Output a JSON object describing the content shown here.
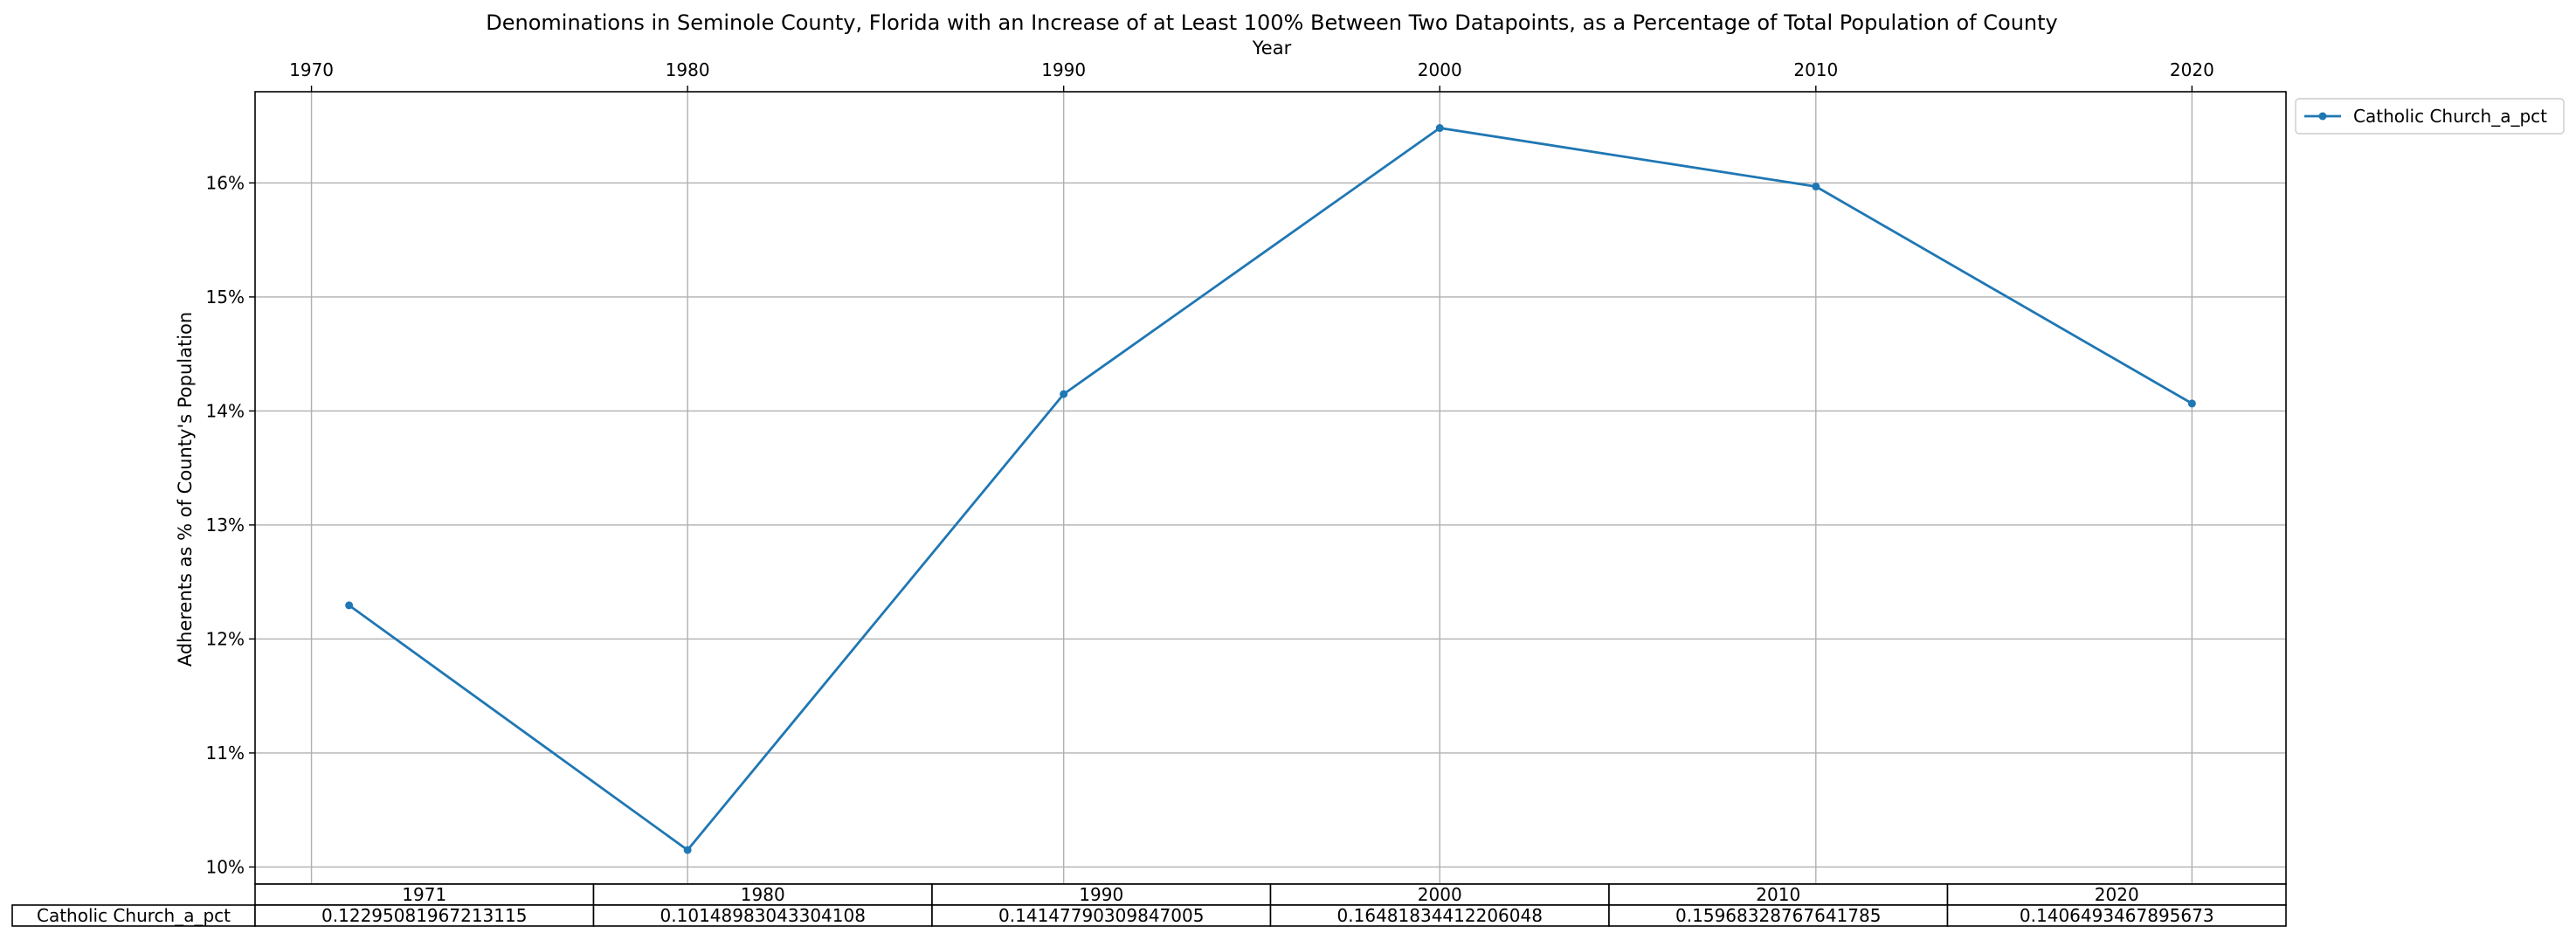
{
  "chart_data": {
    "type": "line",
    "title": "Denominations in Seminole County, Florida with an Increase of at Least 100% Between Two Datapoints, as a Percentage of Total Population of County",
    "xlabel": "Year",
    "ylabel": "Adherents as % of County's Population",
    "x_ticks": [
      "1970",
      "1980",
      "1990",
      "2000",
      "2010",
      "2020"
    ],
    "y_ticks": [
      "10%",
      "11%",
      "12%",
      "13%",
      "14%",
      "15%",
      "16%"
    ],
    "xlim": [
      1968.5,
      2022.5
    ],
    "ylim": [
      0.0985,
      0.168
    ],
    "grid": true,
    "legend_position": "outside-upper-right",
    "series": [
      {
        "name": "Catholic Church_a_pct",
        "color": "#1f77b4",
        "marker": "circle",
        "x": [
          1971,
          1980,
          1990,
          2000,
          2010,
          2020
        ],
        "y": [
          0.12295081967213115,
          0.10148983043304108,
          0.14147790309847005,
          0.16481834412206048,
          0.15968328767641785,
          0.1406493467895673
        ]
      }
    ],
    "table": {
      "columns": [
        "1971",
        "1980",
        "1990",
        "2000",
        "2010",
        "2020"
      ],
      "row_label": "Catholic Church_a_pct",
      "cells": [
        "0.12295081967213115",
        "0.10148983043304108",
        "0.14147790309847005",
        "0.16481834412206048",
        "0.15968328767641785",
        "0.1406493467895673"
      ]
    }
  }
}
